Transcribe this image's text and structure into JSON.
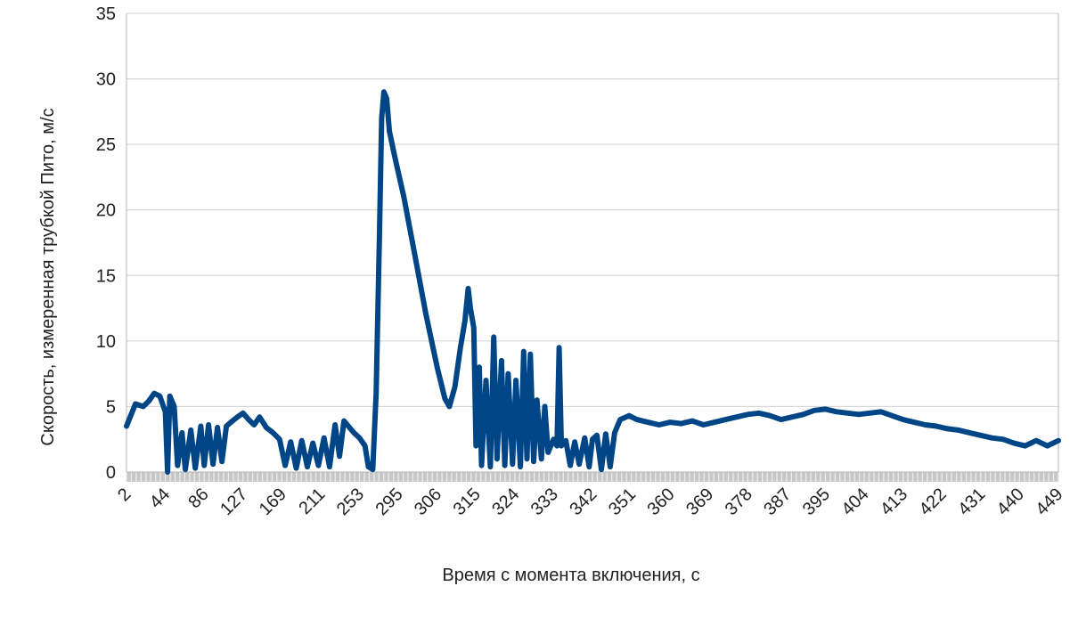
{
  "chart_data": {
    "type": "line",
    "title": "",
    "xlabel": "Время с момента включения, с",
    "ylabel": "Скорость, измеренная трубкой Пито, м/с",
    "ylim": [
      0,
      35
    ],
    "yticks": [
      0,
      5,
      10,
      15,
      20,
      25,
      30,
      35
    ],
    "x_tick_labels": [
      "2",
      "44",
      "86",
      "127",
      "169",
      "211",
      "253",
      "295",
      "306",
      "315",
      "324",
      "333",
      "342",
      "351",
      "360",
      "369",
      "378",
      "387",
      "395",
      "404",
      "413",
      "422",
      "431",
      "440",
      "449"
    ],
    "grid": true,
    "legend": "none",
    "color": "#004586",
    "series": [
      {
        "name": "",
        "points": [
          [
            0,
            3.5
          ],
          [
            0.8,
            5.2
          ],
          [
            1.5,
            5.0
          ],
          [
            2.0,
            5.4
          ],
          [
            2.5,
            6.0
          ],
          [
            3.0,
            5.8
          ],
          [
            3.5,
            4.6
          ],
          [
            3.7,
            0
          ],
          [
            3.9,
            5.8
          ],
          [
            4.3,
            5.0
          ],
          [
            4.6,
            0.5
          ],
          [
            5.0,
            3.0
          ],
          [
            5.3,
            0.2
          ],
          [
            5.8,
            3.2
          ],
          [
            6.2,
            0.3
          ],
          [
            6.7,
            3.5
          ],
          [
            7.0,
            0.5
          ],
          [
            7.4,
            3.6
          ],
          [
            7.8,
            0.6
          ],
          [
            8.2,
            3.4
          ],
          [
            8.6,
            0.8
          ],
          [
            9.0,
            3.5
          ],
          [
            9.4,
            3.8
          ],
          [
            10.0,
            4.2
          ],
          [
            10.5,
            4.5
          ],
          [
            11.0,
            4.0
          ],
          [
            11.5,
            3.6
          ],
          [
            12.0,
            4.2
          ],
          [
            12.6,
            3.4
          ],
          [
            13.2,
            3.0
          ],
          [
            13.8,
            2.5
          ],
          [
            14.3,
            0.5
          ],
          [
            14.8,
            2.3
          ],
          [
            15.3,
            0.3
          ],
          [
            15.8,
            2.4
          ],
          [
            16.3,
            0.4
          ],
          [
            16.8,
            2.2
          ],
          [
            17.3,
            0.5
          ],
          [
            17.8,
            2.6
          ],
          [
            18.3,
            0.4
          ],
          [
            18.8,
            3.6
          ],
          [
            19.2,
            1.2
          ],
          [
            19.6,
            3.9
          ],
          [
            20.0,
            3.5
          ],
          [
            20.5,
            3.0
          ],
          [
            21.0,
            2.6
          ],
          [
            21.5,
            2.0
          ],
          [
            21.8,
            0.4
          ],
          [
            22.2,
            0.2
          ],
          [
            22.5,
            6.0
          ],
          [
            22.8,
            18.0
          ],
          [
            23.0,
            27.0
          ],
          [
            23.2,
            29.0
          ],
          [
            23.45,
            28.5
          ],
          [
            23.7,
            26.0
          ],
          [
            24.2,
            24.0
          ],
          [
            25.0,
            21.0
          ],
          [
            26.0,
            16.5
          ],
          [
            27.0,
            12.0
          ],
          [
            28.0,
            8.0
          ],
          [
            28.7,
            5.6
          ],
          [
            29.1,
            5.0
          ],
          [
            29.6,
            6.5
          ],
          [
            30.1,
            9.5
          ],
          [
            30.5,
            11.5
          ],
          [
            30.8,
            14.0
          ],
          [
            31.0,
            12.5
          ],
          [
            31.3,
            11.0
          ],
          [
            31.5,
            2.0
          ],
          [
            31.8,
            8.0
          ],
          [
            32.0,
            0.5
          ],
          [
            32.4,
            7.0
          ],
          [
            32.8,
            0.4
          ],
          [
            33.1,
            10.3
          ],
          [
            33.4,
            1.0
          ],
          [
            33.8,
            8.5
          ],
          [
            34.1,
            0.5
          ],
          [
            34.4,
            7.5
          ],
          [
            34.8,
            0.6
          ],
          [
            35.1,
            7.0
          ],
          [
            35.5,
            0.4
          ],
          [
            35.8,
            9.2
          ],
          [
            36.1,
            1.0
          ],
          [
            36.4,
            9.0
          ],
          [
            36.7,
            0.8
          ],
          [
            37.0,
            5.5
          ],
          [
            37.4,
            1.0
          ],
          [
            37.7,
            5.0
          ],
          [
            38.0,
            1.5
          ],
          [
            38.5,
            2.5
          ],
          [
            38.8,
            2.0
          ],
          [
            39.0,
            9.5
          ],
          [
            39.2,
            2.0
          ],
          [
            39.6,
            2.4
          ],
          [
            40.0,
            0.5
          ],
          [
            40.4,
            2.3
          ],
          [
            40.8,
            0.6
          ],
          [
            41.3,
            2.6
          ],
          [
            41.7,
            0.4
          ],
          [
            42.0,
            2.5
          ],
          [
            42.4,
            2.8
          ],
          [
            42.8,
            0.2
          ],
          [
            43.2,
            2.9
          ],
          [
            43.6,
            0.4
          ],
          [
            44.0,
            3.0
          ],
          [
            44.5,
            4.0
          ],
          [
            45.3,
            4.3
          ],
          [
            46.0,
            4.0
          ],
          [
            47.0,
            3.8
          ],
          [
            48.0,
            3.6
          ],
          [
            49.0,
            3.8
          ],
          [
            50.0,
            3.7
          ],
          [
            51.0,
            3.9
          ],
          [
            52.0,
            3.6
          ],
          [
            53.0,
            3.8
          ],
          [
            54.0,
            4.0
          ],
          [
            55.0,
            4.2
          ],
          [
            56.0,
            4.4
          ],
          [
            57.0,
            4.5
          ],
          [
            58.0,
            4.3
          ],
          [
            59.0,
            4.0
          ],
          [
            60.0,
            4.2
          ],
          [
            61.0,
            4.4
          ],
          [
            62.0,
            4.7
          ],
          [
            63.0,
            4.8
          ],
          [
            64.0,
            4.6
          ],
          [
            65.0,
            4.5
          ],
          [
            66.0,
            4.4
          ],
          [
            67.0,
            4.5
          ],
          [
            68.0,
            4.6
          ],
          [
            69.0,
            4.3
          ],
          [
            70.0,
            4.0
          ],
          [
            71.0,
            3.8
          ],
          [
            72.0,
            3.6
          ],
          [
            73.0,
            3.5
          ],
          [
            74.0,
            3.3
          ],
          [
            75.0,
            3.2
          ],
          [
            76.0,
            3.0
          ],
          [
            77.0,
            2.8
          ],
          [
            78.0,
            2.6
          ],
          [
            79.0,
            2.5
          ],
          [
            80.0,
            2.2
          ],
          [
            81.0,
            2.0
          ],
          [
            82.0,
            2.4
          ],
          [
            83.0,
            2.0
          ],
          [
            84.0,
            2.4
          ]
        ]
      }
    ]
  }
}
